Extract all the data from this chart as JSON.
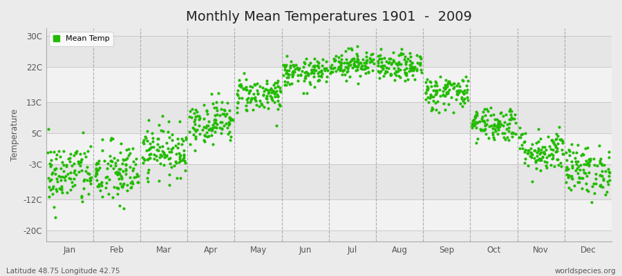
{
  "title": "Monthly Mean Temperatures 1901  -  2009",
  "ylabel": "Temperature",
  "xlabel_bottom_left": "Latitude 48.75 Longitude 42.75",
  "xlabel_bottom_right": "worldspecies.org",
  "legend_label": "Mean Temp",
  "yticks": [
    -20,
    -12,
    -3,
    5,
    13,
    22,
    30
  ],
  "ytick_labels": [
    "-20C",
    "-12C",
    "-3C",
    "5C",
    "13C",
    "22C",
    "30C"
  ],
  "ylim": [
    -23,
    32
  ],
  "months": [
    "Jan",
    "Feb",
    "Mar",
    "Apr",
    "May",
    "Jun",
    "Jul",
    "Aug",
    "Sep",
    "Oct",
    "Nov",
    "Dec"
  ],
  "marker_color": "#22bb00",
  "marker_size": 3.0,
  "background_color": "#ebebeb",
  "plot_bg_color": "#ebebeb",
  "band_light": "#f5f5f5",
  "band_dark": "#e4e4e4",
  "title_fontsize": 14,
  "axis_label_fontsize": 8.5,
  "tick_fontsize": 8.5,
  "dot_alpha": 1.0,
  "n_years": 109,
  "monthly_means": [
    -5.5,
    -5.5,
    0.5,
    8.0,
    15.0,
    20.5,
    23.0,
    22.0,
    15.5,
    7.5,
    0.5,
    -4.5
  ],
  "monthly_stds": [
    4.2,
    4.2,
    3.2,
    2.8,
    2.3,
    1.8,
    1.8,
    1.8,
    2.3,
    2.3,
    2.8,
    3.2
  ],
  "seed": 42,
  "hband_colors": [
    "#ebebeb",
    "#e0e0e0",
    "#ebebeb",
    "#e0e0e0",
    "#ebebeb",
    "#e0e0e0",
    "#ebebeb"
  ]
}
